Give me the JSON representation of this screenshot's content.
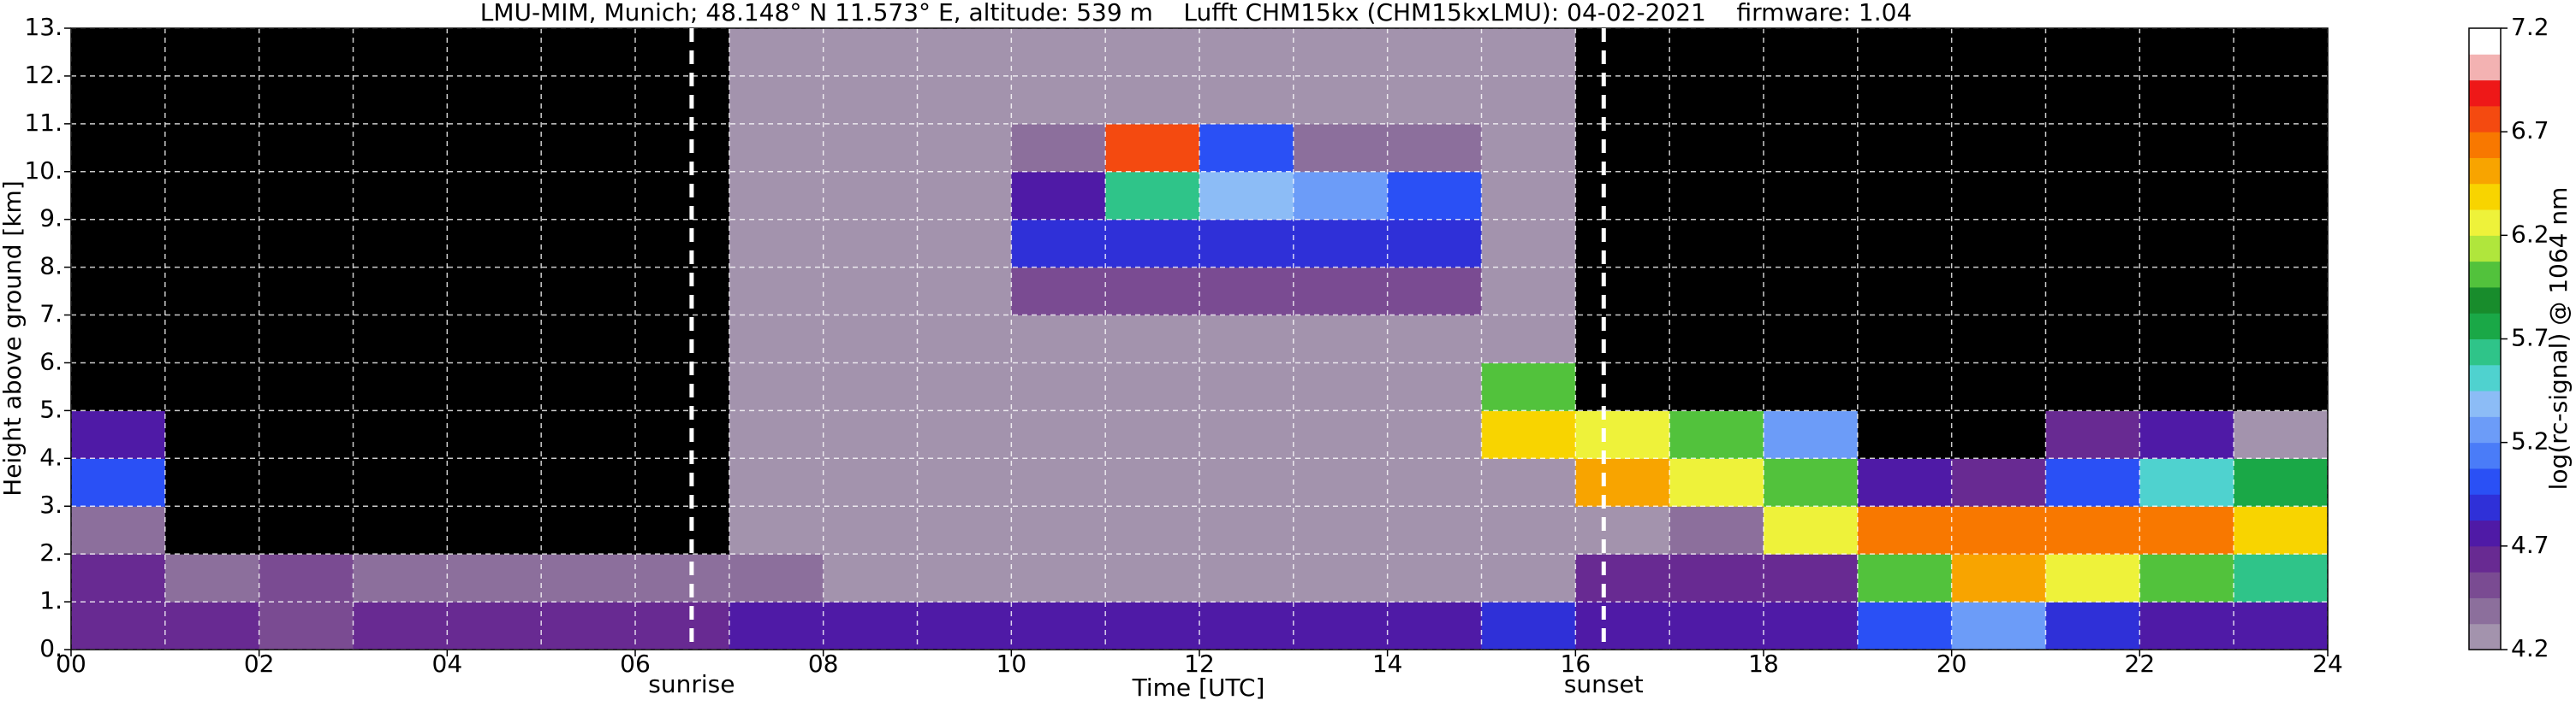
{
  "chart_data": {
    "type": "heatmap",
    "title": "LMU-MIM, Munich; 48.148° N 11.573° E, altitude: 539 m    Lufft CHM15kx (CHM15kxLMU): 04-02-2021    firmware: 1.04",
    "x_label": "Time [UTC]",
    "y_label": "Height above ground [km]",
    "colorbar_label": "log(rc-signal) @ 1064 nm",
    "xlim": [
      0,
      24
    ],
    "ylim": [
      0,
      13
    ],
    "zlim": [
      4.2,
      7.2
    ],
    "xticks": [
      {
        "value": 0,
        "label": "00"
      },
      {
        "value": 2,
        "label": "02"
      },
      {
        "value": 4,
        "label": "04"
      },
      {
        "value": 6,
        "label": "06"
      },
      {
        "value": 8,
        "label": "08"
      },
      {
        "value": 10,
        "label": "10"
      },
      {
        "value": 12,
        "label": "12"
      },
      {
        "value": 14,
        "label": "14"
      },
      {
        "value": 16,
        "label": "16"
      },
      {
        "value": 18,
        "label": "18"
      },
      {
        "value": 20,
        "label": "20"
      },
      {
        "value": 22,
        "label": "22"
      },
      {
        "value": 24,
        "label": "24"
      }
    ],
    "xminorticks": [
      1,
      3,
      5,
      7,
      9,
      11,
      13,
      15,
      17,
      19,
      21,
      23
    ],
    "yticks": [
      {
        "value": 0,
        "label": "0."
      },
      {
        "value": 1,
        "label": "1."
      },
      {
        "value": 2,
        "label": "2."
      },
      {
        "value": 3,
        "label": "3."
      },
      {
        "value": 4,
        "label": "4."
      },
      {
        "value": 5,
        "label": "5."
      },
      {
        "value": 6,
        "label": "6."
      },
      {
        "value": 7,
        "label": "7."
      },
      {
        "value": 8,
        "label": "8."
      },
      {
        "value": 9,
        "label": "9."
      },
      {
        "value": 10,
        "label": "10."
      },
      {
        "value": 11,
        "label": "11."
      },
      {
        "value": 12,
        "label": "12."
      },
      {
        "value": 13,
        "label": "13."
      }
    ],
    "zticks": [
      4.2,
      4.7,
      5.2,
      5.7,
      6.2,
      6.7,
      7.2
    ],
    "grid": true,
    "grid_color": "#ffffff",
    "under_color": "#000000",
    "colormap": [
      "#a393ad",
      "#8c6f9c",
      "#7a4b92",
      "#682a92",
      "#4f1aa6",
      "#2f30d8",
      "#2a50f5",
      "#4a7cf8",
      "#6c9cf8",
      "#8cbcf6",
      "#4fd2cf",
      "#2fc489",
      "#1aa847",
      "#188c2c",
      "#52c23c",
      "#b0e63c",
      "#eef23a",
      "#f8d400",
      "#f8a400",
      "#f87800",
      "#f44a10",
      "#ee1818",
      "#f3b2b2",
      "#ffffff"
    ],
    "xbins": [
      0,
      1,
      2,
      3,
      4,
      5,
      6,
      7,
      8,
      9,
      10,
      11,
      12,
      13,
      14,
      15,
      16,
      17,
      18,
      19,
      20,
      21,
      22,
      23,
      24
    ],
    "ybins": [
      0,
      1,
      2,
      3,
      4,
      5,
      6,
      7,
      8,
      9,
      10,
      11,
      12,
      13
    ],
    "z": [
      [
        4.6,
        4.6,
        4.5,
        4.6,
        4.6,
        4.6,
        4.6,
        4.8,
        4.8,
        4.8,
        4.8,
        4.8,
        4.8,
        4.8,
        4.8,
        4.9,
        4.8,
        4.8,
        4.8,
        5.0,
        5.2,
        4.9,
        4.8,
        4.8
      ],
      [
        4.6,
        4.4,
        4.5,
        4.4,
        4.4,
        4.4,
        4.4,
        4.4,
        4.3,
        4.3,
        4.3,
        4.3,
        4.3,
        4.3,
        4.3,
        4.3,
        4.6,
        4.6,
        4.6,
        6.0,
        6.5,
        6.2,
        6.0,
        5.6
      ],
      [
        4.4,
        4.0,
        4.0,
        4.0,
        4.0,
        4.0,
        4.0,
        4.3,
        4.3,
        4.3,
        4.3,
        4.3,
        4.3,
        4.3,
        4.3,
        4.3,
        4.3,
        4.4,
        6.2,
        6.6,
        6.6,
        6.6,
        6.6,
        6.4
      ],
      [
        5.0,
        4.0,
        4.0,
        4.0,
        4.0,
        4.0,
        4.0,
        4.3,
        4.3,
        4.3,
        4.3,
        4.3,
        4.3,
        4.3,
        4.3,
        4.3,
        6.5,
        6.3,
        6.0,
        4.8,
        4.6,
        5.0,
        5.5,
        5.8
      ],
      [
        4.8,
        4.0,
        4.0,
        4.0,
        4.0,
        4.0,
        4.0,
        4.3,
        4.3,
        4.3,
        4.3,
        4.3,
        4.3,
        4.3,
        4.3,
        6.4,
        6.2,
        6.0,
        5.2,
        4.0,
        4.0,
        4.6,
        4.8,
        4.2
      ],
      [
        4.0,
        4.0,
        4.0,
        4.0,
        4.0,
        4.0,
        4.1,
        4.3,
        4.3,
        4.3,
        4.3,
        4.3,
        4.3,
        4.3,
        4.3,
        6.0,
        4.0,
        4.0,
        4.0,
        4.0,
        4.0,
        4.0,
        4.0,
        4.0
      ],
      [
        4.0,
        4.0,
        4.0,
        4.0,
        4.0,
        4.0,
        4.1,
        4.3,
        4.3,
        4.3,
        4.3,
        4.3,
        4.3,
        4.3,
        4.3,
        4.3,
        4.0,
        4.0,
        4.0,
        4.0,
        4.0,
        4.0,
        4.0,
        4.0
      ],
      [
        4.0,
        4.0,
        4.0,
        4.0,
        4.0,
        4.0,
        4.1,
        4.3,
        4.3,
        4.3,
        4.5,
        4.5,
        4.5,
        4.5,
        4.5,
        4.3,
        4.0,
        4.0,
        4.0,
        4.0,
        4.0,
        4.0,
        4.0,
        4.0
      ],
      [
        4.0,
        4.0,
        4.0,
        4.0,
        4.0,
        4.0,
        4.1,
        4.3,
        4.3,
        4.3,
        4.9,
        4.9,
        4.9,
        4.9,
        4.9,
        4.3,
        4.0,
        4.0,
        4.0,
        4.0,
        4.0,
        4.0,
        4.0,
        4.0
      ],
      [
        4.0,
        4.0,
        4.0,
        4.0,
        4.0,
        4.0,
        4.1,
        4.3,
        4.3,
        4.3,
        4.8,
        5.6,
        5.4,
        5.2,
        5.0,
        4.3,
        4.0,
        4.0,
        4.0,
        4.0,
        4.0,
        4.0,
        4.0,
        4.0
      ],
      [
        4.0,
        4.0,
        4.0,
        4.0,
        4.0,
        4.0,
        4.1,
        4.3,
        4.3,
        4.3,
        4.4,
        6.8,
        5.0,
        4.4,
        4.4,
        4.3,
        4.0,
        4.0,
        4.0,
        4.0,
        4.0,
        4.0,
        4.0,
        4.0
      ],
      [
        4.0,
        4.0,
        4.0,
        4.0,
        4.0,
        4.0,
        4.1,
        4.3,
        4.3,
        4.3,
        4.3,
        4.3,
        4.3,
        4.3,
        4.3,
        4.3,
        4.0,
        4.0,
        4.0,
        4.0,
        4.0,
        4.0,
        4.0,
        4.0
      ],
      [
        4.0,
        4.0,
        4.0,
        4.0,
        4.0,
        4.0,
        4.1,
        4.3,
        4.3,
        4.3,
        4.3,
        4.3,
        4.3,
        4.3,
        4.3,
        4.3,
        4.0,
        4.0,
        4.0,
        4.0,
        4.0,
        4.0,
        4.0,
        4.0
      ]
    ],
    "annotations": [
      {
        "text": "sunrise",
        "x": 6.6
      },
      {
        "text": "sunset",
        "x": 16.3
      }
    ]
  }
}
